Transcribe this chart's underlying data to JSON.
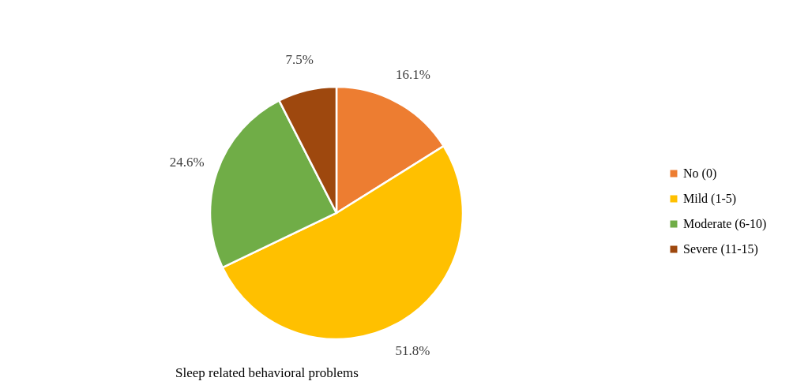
{
  "chart_data": {
    "type": "pie",
    "title": "Sleep related behavioral problems",
    "categories": [
      "No (0)",
      "Mild (1-5)",
      "Moderate (6-10)",
      "Severe (11-15)"
    ],
    "values": [
      16.1,
      51.8,
      24.6,
      7.5
    ],
    "colors": [
      "#ed7d31",
      "#ffc000",
      "#70ad47",
      "#9e480e"
    ],
    "value_labels": [
      "16.1%",
      "51.8%",
      "24.6%",
      "7.5%"
    ],
    "legend": "right"
  }
}
